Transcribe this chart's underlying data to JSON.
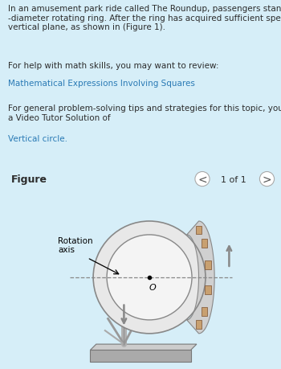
{
  "bg_color_top": "#d6eef8",
  "bg_color_bottom": "#ffffff",
  "text_color": "#2c2c2c",
  "link_color": "#2a7ab5",
  "paragraph2_link": "Mathematical Expressions Involving Squares",
  "paragraph3_link": "Vertical circle",
  "figure_label": "Figure",
  "page_label": "1 of 1",
  "rotation_label": "Rotation\naxis",
  "center_label": "O",
  "ring_edge_color": "#888888",
  "arrow_color": "#888888",
  "dashed_line_color": "#888888"
}
